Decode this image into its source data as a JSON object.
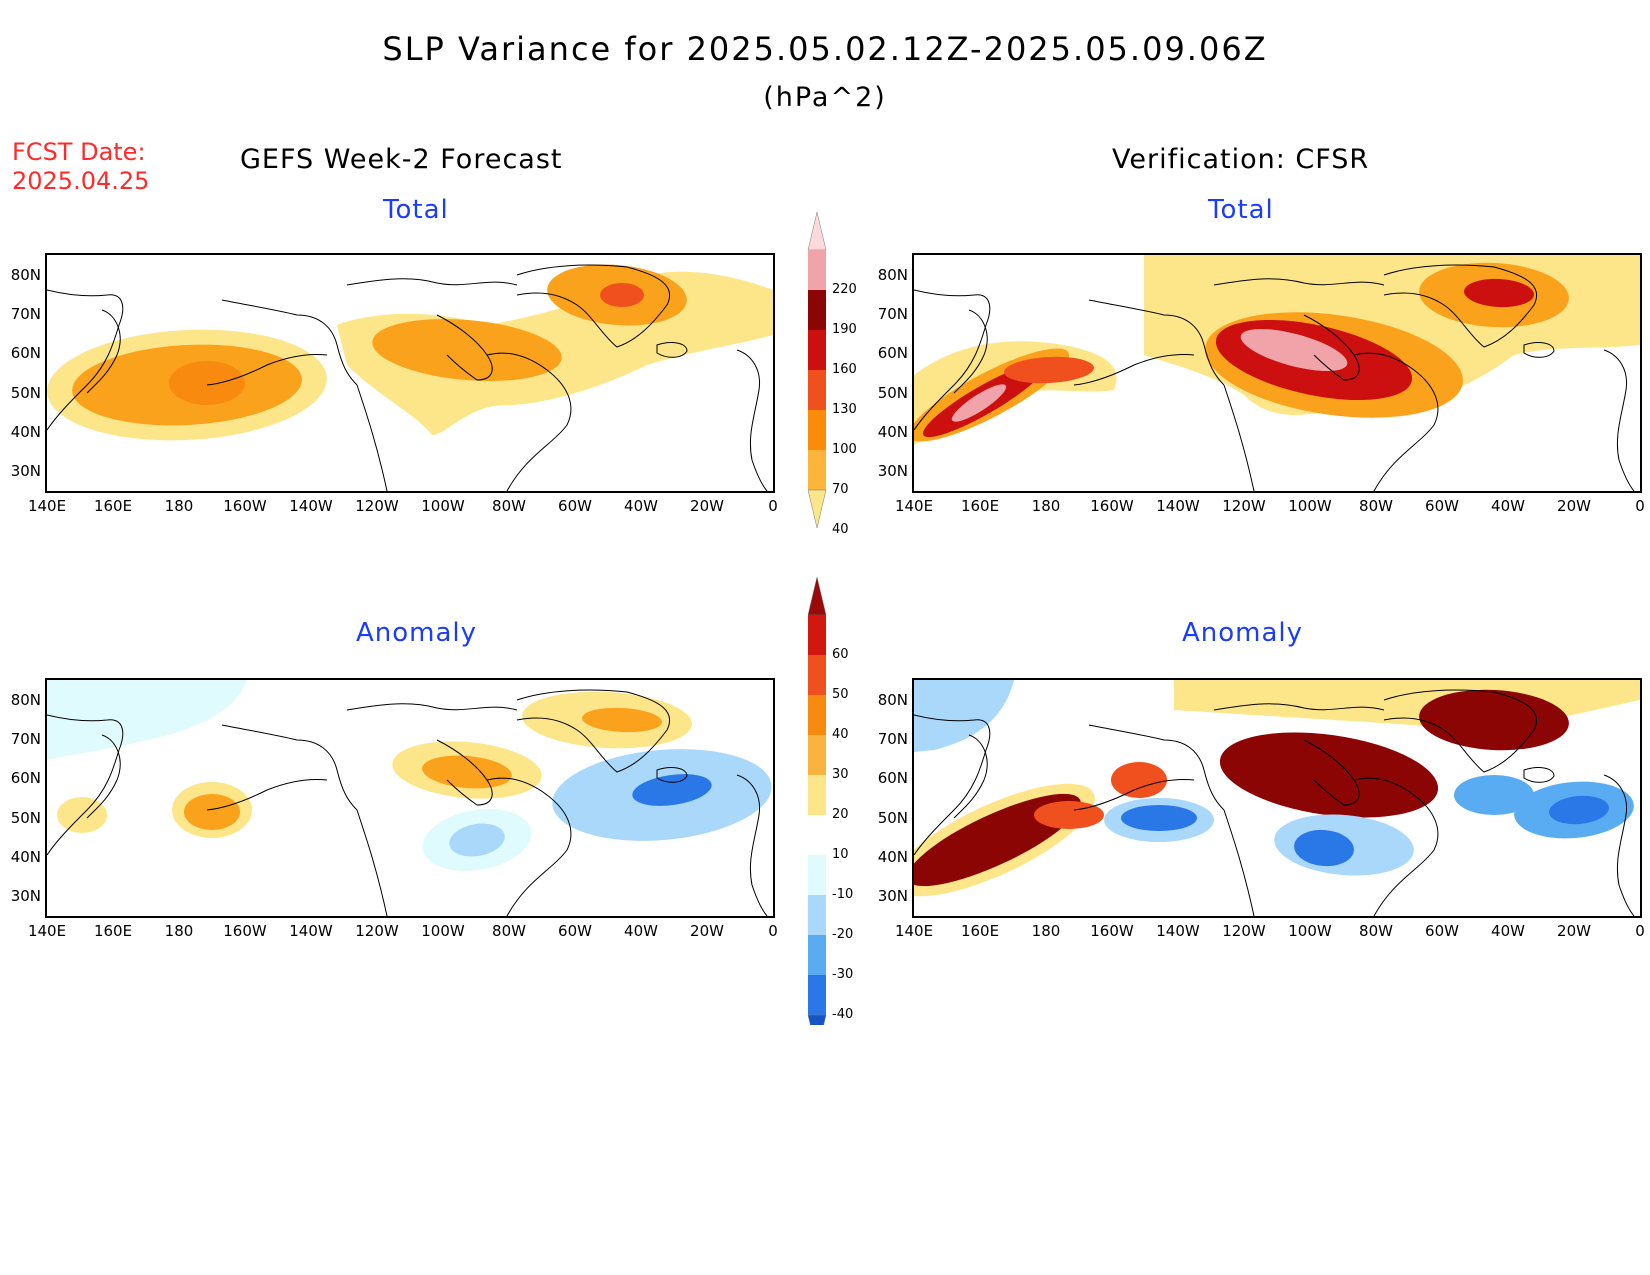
{
  "header": {
    "title": "SLP Variance for 2025.05.02.12Z-2025.05.09.06Z",
    "units": "(hPa^2)",
    "fcst_line1": "FCST Date:",
    "fcst_line2": "2025.04.25"
  },
  "columns": {
    "left_title": "GEFS Week-2 Forecast",
    "right_title": "Verification: CFSR"
  },
  "panels": {
    "total_label": "Total",
    "anomaly_label": "Anomaly"
  },
  "axes": {
    "lat_labels": [
      "80N",
      "70N",
      "60N",
      "50N",
      "40N",
      "30N"
    ],
    "lon_labels": [
      "140E",
      "160E",
      "180",
      "160W",
      "140W",
      "120W",
      "100W",
      "80W",
      "60W",
      "40W",
      "20W",
      "0"
    ]
  },
  "colorbars": {
    "total": {
      "levels": [
        "40",
        "70",
        "100",
        "130",
        "160",
        "190",
        "220"
      ],
      "colors": [
        "#fde68a",
        "#fdb43a",
        "#fb8c0a",
        "#f0501e",
        "#cc1010",
        "#8c0505",
        "#f0a3a8",
        "#fcd9dc"
      ]
    },
    "anomaly": {
      "levels": [
        "60",
        "50",
        "40",
        "30",
        "20",
        "10",
        "-10",
        "-20",
        "-30",
        "-40"
      ],
      "colors": [
        "#9a0a0a",
        "#d2180e",
        "#f0501e",
        "#f98a10",
        "#fbb33f",
        "#fde68a",
        "#ffffff",
        "#e0fbfd",
        "#a9d8fb",
        "#5aacf2",
        "#2a78e8",
        "#1555c8"
      ]
    }
  },
  "map_colors": {
    "y1": "#fde68a",
    "o1": "#fbc04a",
    "o2": "#fba21c",
    "o3": "#f0501e",
    "r1": "#cc1010",
    "r2": "#8c0505",
    "p1": "#f0a3a8",
    "p2": "#fcd9dc",
    "b0": "#e0fbfd",
    "b1": "#a9d8fb",
    "b2": "#5aacf2",
    "b3": "#2a78e8"
  }
}
